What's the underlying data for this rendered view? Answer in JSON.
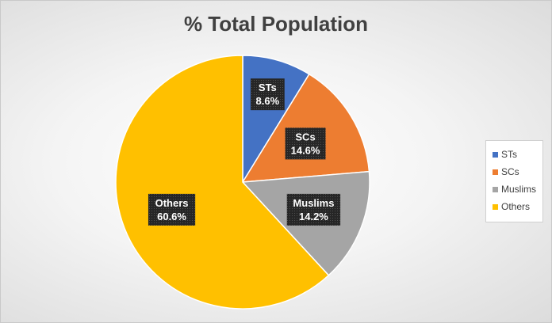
{
  "chart_data": {
    "type": "pie",
    "title": "% Total Population",
    "categories": [
      "STs",
      "SCs",
      "Muslims",
      "Others"
    ],
    "values": [
      8.6,
      14.6,
      14.2,
      60.6
    ],
    "data_labels": [
      "8.6%",
      "14.6%",
      "14.2%",
      "60.6%"
    ],
    "colors": [
      "#4472c4",
      "#ed7d31",
      "#a5a5a5",
      "#ffc000"
    ],
    "legend_position": "right"
  }
}
